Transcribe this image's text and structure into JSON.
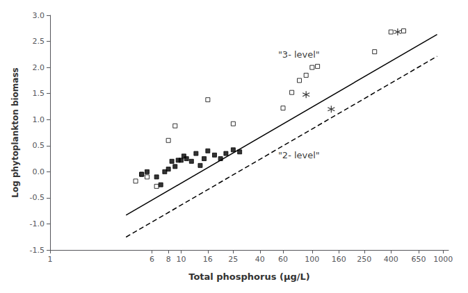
{
  "chart_data": {
    "type": "scatter",
    "xlabel": "Total phosphorus (μg/L)",
    "ylabel": "Log phytoplankton biomass",
    "log": "x",
    "grid": false,
    "xlim": [
      1,
      1100
    ],
    "ylim": [
      -1.5,
      3.0
    ],
    "xticks": [
      1,
      6,
      8,
      10,
      16,
      25,
      40,
      60,
      100,
      160,
      250,
      400,
      650,
      1000
    ],
    "yticks": [
      -1.5,
      {
        "value": -1.0,
        "label": "-1.0"
      },
      -0.5,
      {
        "value": 0.0,
        "label": "0.0"
      },
      0.5,
      {
        "value": 1.0,
        "label": "1.0"
      },
      1.5,
      {
        "value": 2.0,
        "label": "2.0"
      },
      2.5,
      {
        "value": 3.0,
        "label": "3.0"
      }
    ],
    "series": [
      {
        "type": "line",
        "color": "black",
        "line_style": "solid",
        "x": [
          3.8,
          900
        ],
        "values": [
          -0.8335159489,
          2.6331940638
        ]
      },
      {
        "type": "line",
        "color": "black",
        "line_style": "dashed",
        "x": [
          3.8,
          900
        ],
        "values": [
          -1.2535159489,
          2.2131940638
        ]
      },
      {
        "type": "scatter",
        "color": "black",
        "marker": "open_square",
        "x": [
          4.5,
          5.0,
          5.5,
          6.5,
          8.0,
          9.0,
          16.0,
          25.0,
          60.0,
          70.0,
          80.0,
          90.0,
          100.0,
          110.0,
          300.0,
          400.0,
          500.0
        ],
        "values": [
          -0.18,
          -0.05,
          -0.1,
          -0.28,
          0.6,
          0.88,
          1.38,
          0.92,
          1.22,
          1.52,
          1.75,
          1.85,
          2.0,
          2.02,
          2.3,
          2.68,
          2.7
        ]
      },
      {
        "type": "scatter",
        "color": "black",
        "marker": "square",
        "x": [
          5.0,
          5.5,
          6.5,
          7.0,
          7.5,
          8.0,
          8.5,
          9.0,
          9.5,
          10.0,
          10.5,
          11.0,
          12.0,
          13.0,
          14.0,
          15.0,
          16.0,
          18.0,
          20.0,
          22.0,
          25.0,
          28.0
        ],
        "values": [
          -0.05,
          0.0,
          -0.1,
          -0.25,
          0.0,
          0.05,
          0.2,
          0.1,
          0.22,
          0.22,
          0.3,
          0.25,
          0.2,
          0.35,
          0.12,
          0.25,
          0.4,
          0.32,
          0.25,
          0.35,
          0.42,
          0.38
        ]
      },
      {
        "type": "scatter",
        "color": "black",
        "marker": "asterisk",
        "x": [
          90.0,
          140.0,
          450.0
        ],
        "values": [
          1.48,
          1.2,
          2.68
        ]
      }
    ],
    "annotations": [
      {
        "text": "\"3- level\"",
        "x": 55,
        "y": 2.15
      },
      {
        "text": "\"2- level\"",
        "x": 55,
        "y": 0.22
      }
    ]
  }
}
